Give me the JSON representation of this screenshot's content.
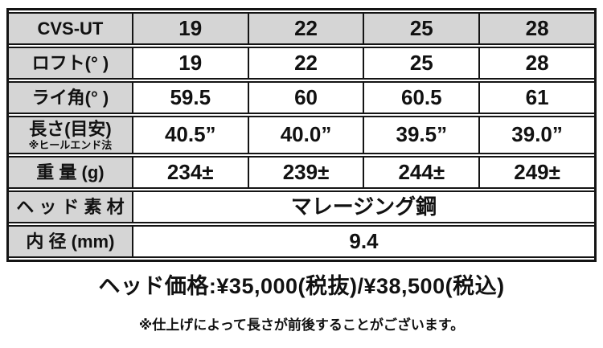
{
  "colors": {
    "header_bg": "#d5d5d5",
    "border": "#141414",
    "text": "#111111",
    "background": "#ffffff"
  },
  "table": {
    "header": {
      "label": "CVS-UT",
      "values": [
        "19",
        "22",
        "25",
        "28"
      ]
    },
    "rows": [
      {
        "label": "ロフト(° )",
        "values": [
          "19",
          "22",
          "25",
          "28"
        ]
      },
      {
        "label": "ライ角(° )",
        "values": [
          "59.5",
          "60",
          "60.5",
          "61"
        ]
      },
      {
        "label": "長さ(目安)",
        "sublabel": "※ヒールエンド法",
        "values": [
          "40.5”",
          "40.0”",
          "39.5”",
          "39.0”"
        ]
      },
      {
        "label": "重 量 (g)",
        "values": [
          "234±",
          "239±",
          "244±",
          "249±"
        ]
      },
      {
        "label": "ヘ ッ ド 素 材",
        "span_value": "マレージング鋼"
      },
      {
        "label": "内 径 (mm)",
        "span_value": "9.4"
      }
    ]
  },
  "price_line": "ヘッド価格:¥35,000(税抜)/¥38,500(税込)",
  "note_line": "※仕上げによって長さが前後することがございます。"
}
